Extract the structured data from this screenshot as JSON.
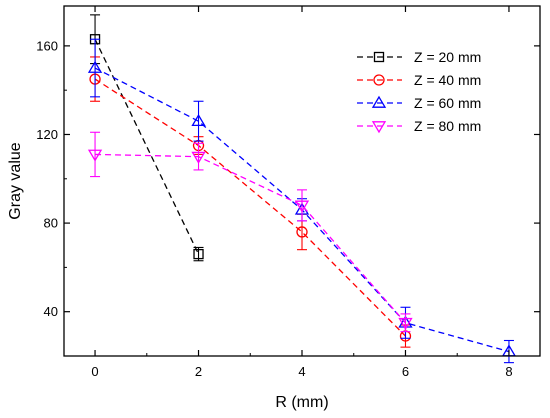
{
  "chart_data": {
    "type": "line",
    "xlabel": "R (mm)",
    "ylabel": "Gray value",
    "xlim": [
      -0.6,
      8.6
    ],
    "ylim": [
      20,
      178
    ],
    "xticks": [
      0,
      2,
      4,
      6,
      8
    ],
    "yticks": [
      40,
      80,
      120,
      160
    ],
    "grid": false,
    "legend_position": "top-right",
    "series": [
      {
        "name": "Z = 20 mm",
        "color": "#000000",
        "marker": "square",
        "x": [
          0,
          2
        ],
        "y": [
          163,
          66
        ],
        "err": [
          11,
          3
        ]
      },
      {
        "name": "Z = 40 mm",
        "color": "#ff0000",
        "marker": "circle",
        "x": [
          0,
          2,
          4,
          6
        ],
        "y": [
          145,
          115,
          76,
          29
        ],
        "err": [
          10,
          4,
          8,
          5
        ]
      },
      {
        "name": "Z = 60 mm",
        "color": "#0000ff",
        "marker": "triangle-up",
        "x": [
          0,
          2,
          4,
          6,
          8
        ],
        "y": [
          150,
          126,
          86,
          35,
          22
        ],
        "err": [
          13,
          9,
          5,
          7,
          5
        ]
      },
      {
        "name": "Z = 80 mm",
        "color": "#ff00ff",
        "marker": "triangle-down",
        "x": [
          0,
          2,
          4,
          6
        ],
        "y": [
          111,
          110,
          88,
          35
        ],
        "err": [
          10,
          6,
          7,
          4
        ]
      }
    ]
  }
}
